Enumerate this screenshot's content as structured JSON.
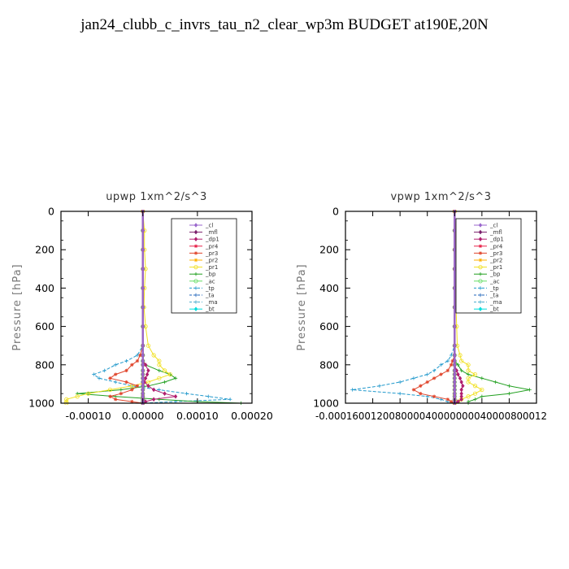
{
  "title": "jan24_clubb_c_invrs_tau_n2_clear_wp3m  BUDGET at190E,20N",
  "legend_labels": [
    "_cl",
    "_mfl",
    "_dp1",
    "_pr4",
    "_pr3",
    "_pr2",
    "_pr1",
    "_bp",
    "_ac",
    "_tp",
    "_ta",
    "_ma",
    "_bt"
  ],
  "colors": {
    "_cl": "#9966cc",
    "_mfl": "#7a1f6b",
    "_dp1": "#b01e6e",
    "_pr4": "#e8234a",
    "_pr3": "#e0452c",
    "_pr2": "#ffb000",
    "_pr1": "#f0e020",
    "_bp": "#22a020",
    "_ac": "#66dd66",
    "_tp": "#2299cc",
    "_ta": "#2266bb",
    "_ma": "#44aacc",
    "_bt": "#00dddd"
  },
  "chart_data": [
    {
      "type": "line",
      "title": "upwp   1xm^2/s^3",
      "ylabel": "Pressure [hPa]",
      "xlim": [
        -0.00015,
        0.0002
      ],
      "ylim": [
        1000,
        0
      ],
      "xticks": [
        -0.0001,
        0.0,
        0.0001,
        0.0002
      ],
      "xtick_labels": [
        "-0.00010",
        "0.00000",
        "0.00010",
        "0.00020"
      ],
      "yticks": [
        0,
        200,
        400,
        600,
        800,
        1000
      ],
      "ytick_labels": [
        "0",
        "200",
        "400",
        "600",
        "800",
        "1000"
      ],
      "grid": false,
      "legend_position": "upper-right",
      "y": [
        0,
        100,
        200,
        300,
        400,
        500,
        600,
        700,
        750,
        780,
        800,
        830,
        850,
        870,
        890,
        910,
        930,
        950,
        965,
        980,
        992,
        1000
      ],
      "series": [
        {
          "name": "_cl",
          "values": [
            0,
            0,
            0,
            0,
            0,
            0,
            0,
            0,
            0,
            0,
            0,
            0,
            0,
            0,
            0,
            0,
            0,
            0,
            0,
            0,
            0,
            0
          ]
        },
        {
          "name": "_mfl",
          "values": [
            0,
            0,
            0,
            0,
            0,
            0,
            0,
            0,
            0,
            0,
            0,
            0,
            0,
            0,
            0,
            0,
            0,
            0,
            0,
            0,
            0,
            0
          ]
        },
        {
          "name": "_dp1",
          "values": [
            0,
            0,
            0,
            0,
            0,
            0,
            0,
            0,
            0,
            0,
            5e-06,
            1e-05,
            8e-06,
            5e-06,
            3e-06,
            1e-05,
            2e-05,
            4e-05,
            6e-05,
            2e-05,
            5e-06,
            0
          ]
        },
        {
          "name": "_pr4",
          "values": [
            0,
            0,
            0,
            0,
            0,
            0,
            0,
            0,
            0,
            0,
            0,
            0,
            0,
            0,
            0,
            0,
            0,
            0,
            0,
            0,
            0,
            0
          ]
        },
        {
          "name": "_pr3",
          "values": [
            0,
            0,
            0,
            0,
            0,
            0,
            0,
            0,
            -5e-06,
            -1e-05,
            -2e-05,
            -3e-05,
            -5e-05,
            -6e-05,
            -3e-05,
            -1e-05,
            -2e-05,
            -4e-05,
            -6e-05,
            -5e-05,
            -2e-05,
            0
          ]
        },
        {
          "name": "_pr2",
          "values": [
            0,
            0,
            0,
            0,
            0,
            0,
            0,
            0,
            0,
            0,
            0,
            0,
            0,
            0,
            0,
            0,
            0,
            0,
            0,
            0,
            0,
            0
          ]
        },
        {
          "name": "_pr1",
          "values": [
            0,
            3e-06,
            3e-06,
            5e-06,
            3e-06,
            2e-06,
            5e-06,
            1e-05,
            2e-05,
            3e-05,
            3e-05,
            4e-05,
            5e-05,
            3e-05,
            1e-05,
            -2e-05,
            -6e-05,
            -0.0001,
            -0.00012,
            -0.00014,
            -0.00014,
            -0.00014
          ]
        },
        {
          "name": "_bp",
          "values": [
            0,
            0,
            0,
            0,
            0,
            0,
            0,
            0,
            0,
            0,
            5e-06,
            3e-05,
            5e-05,
            6e-05,
            4e-05,
            1e-05,
            -4e-05,
            -0.00012,
            -5e-05,
            3e-05,
            0.0001,
            0.00018
          ]
        },
        {
          "name": "_ac",
          "values": [
            0,
            0,
            0,
            0,
            0,
            0,
            0,
            0,
            0,
            0,
            0,
            0,
            0,
            0,
            0,
            0,
            0,
            0,
            0,
            0,
            0,
            0
          ]
        },
        {
          "name": "_tp",
          "values": [
            0,
            0,
            0,
            0,
            0,
            0,
            0,
            0,
            -1e-05,
            -3e-05,
            -5e-05,
            -7e-05,
            -9e-05,
            -8e-05,
            -5e-05,
            -2e-05,
            3e-05,
            8e-05,
            0.00012,
            0.00016,
            6e-05,
            0
          ]
        },
        {
          "name": "_ta",
          "values": [
            0,
            0,
            0,
            0,
            0,
            0,
            0,
            0,
            0,
            0,
            0,
            0,
            0,
            0,
            0,
            0,
            0,
            0,
            0,
            0,
            0,
            0
          ]
        },
        {
          "name": "_ma",
          "values": [
            0,
            0,
            0,
            0,
            0,
            0,
            0,
            0,
            0,
            0,
            0,
            0,
            0,
            0,
            0,
            0,
            0,
            0,
            0,
            0,
            0,
            0
          ]
        },
        {
          "name": "_bt",
          "values": [
            0,
            0,
            0,
            0,
            0,
            0,
            0,
            0,
            0,
            0,
            0,
            0,
            0,
            0,
            0,
            0,
            0,
            0,
            0,
            0,
            0,
            0
          ]
        }
      ]
    },
    {
      "type": "line",
      "title": "vpwp   1xm^2/s^3",
      "ylabel": "Pressure [hPa]",
      "xlim": [
        -0.00016,
        0.00012
      ],
      "ylim": [
        1000,
        0
      ],
      "xticks": [
        -0.00016,
        -0.00012,
        -8e-05,
        -4e-05,
        0.0,
        4e-05,
        8e-05,
        0.00012
      ],
      "xtick_labels": [
        "-0.00016",
        "-0.00012",
        "-0.00008",
        "-0.00004",
        "0.00000",
        "0.00004",
        "0.00008",
        "0.00012"
      ],
      "xtick_combined_label": "-0.000160012008000040000000040000800012",
      "yticks": [
        0,
        200,
        400,
        600,
        800,
        1000
      ],
      "ytick_labels": [
        "0",
        "200",
        "400",
        "600",
        "800",
        "1000"
      ],
      "grid": false,
      "legend_position": "upper-right",
      "y": [
        0,
        100,
        200,
        300,
        400,
        500,
        600,
        700,
        750,
        780,
        800,
        830,
        850,
        870,
        890,
        910,
        930,
        950,
        965,
        980,
        992,
        1000
      ],
      "series": [
        {
          "name": "_cl",
          "values": [
            0,
            0,
            0,
            0,
            0,
            0,
            0,
            0,
            0,
            0,
            0,
            0,
            0,
            0,
            0,
            0,
            0,
            0,
            0,
            0,
            0,
            0
          ]
        },
        {
          "name": "_mfl",
          "values": [
            0,
            0,
            0,
            0,
            0,
            0,
            0,
            0,
            0,
            0,
            0,
            0,
            0,
            0,
            0,
            0,
            0,
            0,
            0,
            0,
            0,
            0
          ]
        },
        {
          "name": "_dp1",
          "values": [
            0,
            0,
            0,
            0,
            0,
            0,
            0,
            0,
            0,
            0,
            0,
            3e-06,
            5e-06,
            8e-06,
            1e-05,
            1.2e-05,
            1e-05,
            1e-05,
            1e-05,
            1e-05,
            5e-06,
            0
          ]
        },
        {
          "name": "_pr4",
          "values": [
            0,
            0,
            0,
            0,
            0,
            0,
            0,
            0,
            0,
            0,
            0,
            0,
            0,
            0,
            0,
            0,
            0,
            0,
            0,
            0,
            0,
            0
          ]
        },
        {
          "name": "_pr3",
          "values": [
            0,
            0,
            0,
            0,
            0,
            0,
            0,
            0,
            0,
            -3e-06,
            -5e-06,
            -1e-05,
            -2e-05,
            -3e-05,
            -4e-05,
            -5e-05,
            -6e-05,
            -5e-05,
            -3e-05,
            -1e-05,
            -5e-06,
            0
          ]
        },
        {
          "name": "_pr2",
          "values": [
            0,
            0,
            0,
            0,
            0,
            0,
            0,
            0,
            0,
            0,
            0,
            0,
            0,
            0,
            0,
            0,
            0,
            0,
            0,
            0,
            0,
            0
          ]
        },
        {
          "name": "_pr1",
          "values": [
            0,
            2e-06,
            2e-06,
            3e-06,
            2e-06,
            2e-06,
            3e-06,
            4e-06,
            8e-06,
            1e-05,
            2e-05,
            2e-05,
            3e-05,
            2e-05,
            2e-05,
            3e-05,
            4e-05,
            3e-05,
            2e-05,
            1e-05,
            5e-06,
            0
          ]
        },
        {
          "name": "_bp",
          "values": [
            0,
            0,
            0,
            0,
            0,
            0,
            0,
            0,
            0,
            0,
            5e-06,
            1e-05,
            2e-05,
            4e-05,
            6e-05,
            8e-05,
            0.00011,
            8e-05,
            4e-05,
            3e-05,
            2e-05,
            2e-05
          ]
        },
        {
          "name": "_ac",
          "values": [
            0,
            0,
            0,
            0,
            0,
            0,
            0,
            0,
            0,
            0,
            0,
            0,
            0,
            0,
            0,
            0,
            0,
            0,
            0,
            0,
            0,
            0
          ]
        },
        {
          "name": "_tp",
          "values": [
            0,
            0,
            0,
            0,
            0,
            0,
            0,
            0,
            -5e-06,
            -1e-05,
            -2e-05,
            -3e-05,
            -4e-05,
            -6e-05,
            -8e-05,
            -0.00011,
            -0.00015,
            -8e-05,
            -4e-05,
            -2e-05,
            -1e-05,
            0
          ]
        },
        {
          "name": "_ta",
          "values": [
            0,
            0,
            0,
            0,
            0,
            0,
            0,
            0,
            0,
            0,
            0,
            0,
            0,
            0,
            0,
            0,
            0,
            0,
            0,
            0,
            0,
            0
          ]
        },
        {
          "name": "_ma",
          "values": [
            0,
            0,
            0,
            0,
            0,
            0,
            0,
            0,
            0,
            0,
            0,
            0,
            0,
            0,
            0,
            0,
            0,
            0,
            0,
            0,
            0,
            0
          ]
        },
        {
          "name": "_bt",
          "values": [
            0,
            0,
            0,
            0,
            0,
            0,
            0,
            0,
            0,
            0,
            0,
            0,
            0,
            0,
            0,
            0,
            0,
            0,
            0,
            0,
            0,
            0
          ]
        }
      ]
    }
  ]
}
